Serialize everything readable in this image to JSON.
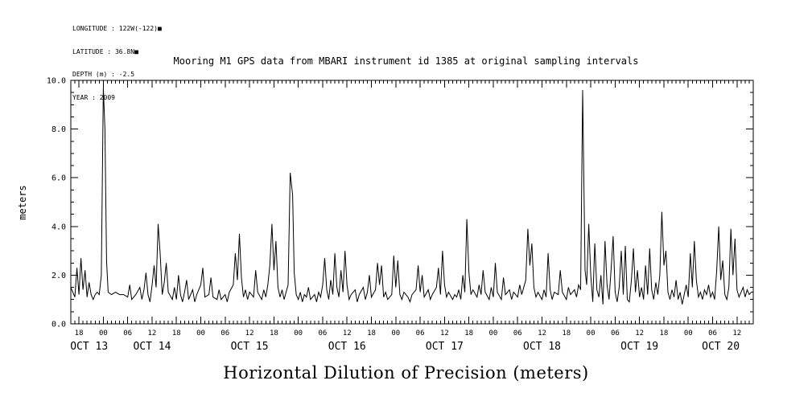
{
  "meta": {
    "longitude": "LONGITUDE : 122W(-122)■",
    "latitude": "LATITUDE : 36.8N■",
    "depth": "DEPTH (m) : -2.5",
    "year": "YEAR : 2009"
  },
  "title": "Mooring M1 GPS data from MBARI instrument id 1385 at original sampling intervals",
  "xlabel": "Horizontal Dilution of Precision (meters)",
  "ylabel": "meters",
  "chart_data": {
    "type": "line",
    "title": "Mooring M1 GPS data from MBARI instrument id 1385 at original sampling intervals",
    "xlabel": "Horizontal Dilution of Precision (meters)",
    "ylabel": "meters",
    "ylim": [
      0,
      10
    ],
    "x_range": [
      0,
      168
    ],
    "x_epoch": "hours since 1600 OCT 13 2009",
    "x_minor_step_hours": 1,
    "y_minor_step": 0.5,
    "grid": false,
    "legend": "none",
    "line_color": "#000000",
    "y_major_ticks": [
      {
        "v": 0,
        "label": "0.0"
      },
      {
        "v": 2,
        "label": "2.0"
      },
      {
        "v": 4,
        "label": "4.0"
      },
      {
        "v": 6,
        "label": "6.0"
      },
      {
        "v": 8,
        "label": "8.0"
      },
      {
        "v": 10,
        "label": "10.0"
      }
    ],
    "x_major_ticks": [
      {
        "t": 2,
        "label": "18"
      },
      {
        "t": 8,
        "label": "00"
      },
      {
        "t": 14,
        "label": "06"
      },
      {
        "t": 20,
        "label": "12"
      },
      {
        "t": 26,
        "label": "18"
      },
      {
        "t": 32,
        "label": "00"
      },
      {
        "t": 38,
        "label": "06"
      },
      {
        "t": 44,
        "label": "12"
      },
      {
        "t": 50,
        "label": "18"
      },
      {
        "t": 56,
        "label": "00"
      },
      {
        "t": 62,
        "label": "06"
      },
      {
        "t": 68,
        "label": "12"
      },
      {
        "t": 74,
        "label": "18"
      },
      {
        "t": 80,
        "label": "00"
      },
      {
        "t": 86,
        "label": "06"
      },
      {
        "t": 92,
        "label": "12"
      },
      {
        "t": 98,
        "label": "18"
      },
      {
        "t": 104,
        "label": "00"
      },
      {
        "t": 110,
        "label": "06"
      },
      {
        "t": 116,
        "label": "12"
      },
      {
        "t": 122,
        "label": "18"
      },
      {
        "t": 128,
        "label": "00"
      },
      {
        "t": 134,
        "label": "06"
      },
      {
        "t": 140,
        "label": "12"
      },
      {
        "t": 146,
        "label": "18"
      },
      {
        "t": 152,
        "label": "00"
      },
      {
        "t": 158,
        "label": "06"
      },
      {
        "t": 164,
        "label": "12"
      }
    ],
    "date_labels": [
      {
        "t": 4.5,
        "label": "OCT 13"
      },
      {
        "t": 20,
        "label": "OCT 14"
      },
      {
        "t": 44,
        "label": "OCT 15"
      },
      {
        "t": 68,
        "label": "OCT 16"
      },
      {
        "t": 92,
        "label": "OCT 17"
      },
      {
        "t": 116,
        "label": "OCT 18"
      },
      {
        "t": 140,
        "label": "OCT 19"
      },
      {
        "t": 160,
        "label": "OCT 20"
      }
    ],
    "points": [
      [
        0,
        1.5
      ],
      [
        1,
        1.1
      ],
      [
        1.5,
        2.3
      ],
      [
        2,
        1.2
      ],
      [
        2.5,
        2.7
      ],
      [
        3,
        1.4
      ],
      [
        3.5,
        2.2
      ],
      [
        4,
        1.1
      ],
      [
        4.5,
        1.7
      ],
      [
        5,
        1.2
      ],
      [
        5.5,
        1.0
      ],
      [
        6,
        1.2
      ],
      [
        6.5,
        1.3
      ],
      [
        7,
        1.2
      ],
      [
        7.5,
        2.0
      ],
      [
        8,
        9.7
      ],
      [
        8.4,
        8.0
      ],
      [
        8.8,
        2.6
      ],
      [
        9.2,
        1.3
      ],
      [
        10,
        1.2
      ],
      [
        11,
        1.3
      ],
      [
        12,
        1.2
      ],
      [
        13,
        1.2
      ],
      [
        14,
        1.1
      ],
      [
        14.5,
        1.6
      ],
      [
        15,
        1.0
      ],
      [
        16,
        1.2
      ],
      [
        17,
        1.5
      ],
      [
        17.5,
        1.0
      ],
      [
        18,
        1.4
      ],
      [
        18.5,
        2.1
      ],
      [
        19,
        1.2
      ],
      [
        19.5,
        0.9
      ],
      [
        20,
        1.6
      ],
      [
        20.5,
        2.4
      ],
      [
        21,
        1.5
      ],
      [
        21.5,
        4.1
      ],
      [
        22,
        2.9
      ],
      [
        22.5,
        1.2
      ],
      [
        23,
        1.7
      ],
      [
        23.5,
        2.5
      ],
      [
        24,
        1.3
      ],
      [
        25,
        1.0
      ],
      [
        25.5,
        1.5
      ],
      [
        26,
        1.0
      ],
      [
        26.5,
        2.0
      ],
      [
        27,
        1.2
      ],
      [
        27.5,
        0.9
      ],
      [
        28,
        1.3
      ],
      [
        28.5,
        1.8
      ],
      [
        29,
        1.0
      ],
      [
        30,
        1.4
      ],
      [
        30.5,
        0.9
      ],
      [
        31,
        1.2
      ],
      [
        32,
        1.6
      ],
      [
        32.5,
        2.3
      ],
      [
        33,
        1.1
      ],
      [
        34,
        1.2
      ],
      [
        34.5,
        1.9
      ],
      [
        35,
        1.1
      ],
      [
        36,
        1.0
      ],
      [
        36.5,
        1.4
      ],
      [
        37,
        1.0
      ],
      [
        38,
        1.2
      ],
      [
        38.5,
        0.9
      ],
      [
        39,
        1.3
      ],
      [
        40,
        1.6
      ],
      [
        40.5,
        2.9
      ],
      [
        41,
        1.8
      ],
      [
        41.5,
        3.7
      ],
      [
        42,
        1.9
      ],
      [
        42.5,
        1.1
      ],
      [
        43,
        1.4
      ],
      [
        43.5,
        1.0
      ],
      [
        44,
        1.3
      ],
      [
        45,
        1.1
      ],
      [
        45.5,
        2.2
      ],
      [
        46,
        1.3
      ],
      [
        47,
        1.0
      ],
      [
        47.5,
        1.4
      ],
      [
        48,
        1.1
      ],
      [
        48.5,
        1.6
      ],
      [
        49,
        2.4
      ],
      [
        49.5,
        4.1
      ],
      [
        50,
        2.2
      ],
      [
        50.5,
        3.4
      ],
      [
        51,
        1.5
      ],
      [
        51.5,
        1.1
      ],
      [
        52,
        1.4
      ],
      [
        52.5,
        1.0
      ],
      [
        53,
        1.3
      ],
      [
        53.5,
        1.6
      ],
      [
        54,
        6.2
      ],
      [
        54.6,
        5.3
      ],
      [
        55,
        2.1
      ],
      [
        55.5,
        1.2
      ],
      [
        56,
        1.0
      ],
      [
        56.5,
        1.3
      ],
      [
        57,
        0.9
      ],
      [
        57.5,
        1.2
      ],
      [
        58,
        1.1
      ],
      [
        58.5,
        1.5
      ],
      [
        59,
        1.0
      ],
      [
        60,
        1.2
      ],
      [
        60.5,
        0.9
      ],
      [
        61,
        1.3
      ],
      [
        61.5,
        1.1
      ],
      [
        62,
        1.6
      ],
      [
        62.5,
        2.7
      ],
      [
        63,
        1.4
      ],
      [
        63.5,
        1.0
      ],
      [
        64,
        1.8
      ],
      [
        64.5,
        1.2
      ],
      [
        65,
        2.9
      ],
      [
        65.5,
        1.5
      ],
      [
        66,
        1.1
      ],
      [
        66.5,
        2.2
      ],
      [
        67,
        1.3
      ],
      [
        67.5,
        3.0
      ],
      [
        68,
        1.6
      ],
      [
        68.5,
        1.0
      ],
      [
        69,
        1.2
      ],
      [
        70,
        1.4
      ],
      [
        70.5,
        0.9
      ],
      [
        71,
        1.2
      ],
      [
        72,
        1.5
      ],
      [
        72.5,
        1.0
      ],
      [
        73,
        1.3
      ],
      [
        73.5,
        2.0
      ],
      [
        74,
        1.1
      ],
      [
        75,
        1.4
      ],
      [
        75.5,
        2.5
      ],
      [
        76,
        1.6
      ],
      [
        76.5,
        2.4
      ],
      [
        77,
        1.1
      ],
      [
        77.5,
        1.3
      ],
      [
        78,
        1.0
      ],
      [
        79,
        1.2
      ],
      [
        79.5,
        2.8
      ],
      [
        80,
        1.5
      ],
      [
        80.5,
        2.6
      ],
      [
        81,
        1.2
      ],
      [
        81.5,
        1.0
      ],
      [
        82,
        1.3
      ],
      [
        83,
        1.1
      ],
      [
        83.5,
        0.9
      ],
      [
        84,
        1.2
      ],
      [
        85,
        1.4
      ],
      [
        85.5,
        2.4
      ],
      [
        86,
        1.3
      ],
      [
        86.5,
        2.0
      ],
      [
        87,
        1.1
      ],
      [
        88,
        1.4
      ],
      [
        88.5,
        1.0
      ],
      [
        89,
        1.2
      ],
      [
        90,
        1.5
      ],
      [
        90.5,
        2.3
      ],
      [
        91,
        1.2
      ],
      [
        91.5,
        3.0
      ],
      [
        92,
        1.6
      ],
      [
        92.5,
        1.1
      ],
      [
        93,
        1.3
      ],
      [
        94,
        1.0
      ],
      [
        94.5,
        1.2
      ],
      [
        95,
        1.1
      ],
      [
        95.5,
        1.4
      ],
      [
        96,
        1.0
      ],
      [
        96.5,
        2.0
      ],
      [
        97,
        1.3
      ],
      [
        97.5,
        4.3
      ],
      [
        98,
        2.1
      ],
      [
        98.5,
        1.2
      ],
      [
        99,
        1.4
      ],
      [
        100,
        1.1
      ],
      [
        100.5,
        1.6
      ],
      [
        101,
        1.2
      ],
      [
        101.5,
        2.2
      ],
      [
        102,
        1.3
      ],
      [
        103,
        1.0
      ],
      [
        103.5,
        1.5
      ],
      [
        104,
        1.1
      ],
      [
        104.5,
        2.5
      ],
      [
        105,
        1.3
      ],
      [
        106,
        1.0
      ],
      [
        106.5,
        1.9
      ],
      [
        107,
        1.2
      ],
      [
        108,
        1.4
      ],
      [
        108.5,
        1.0
      ],
      [
        109,
        1.3
      ],
      [
        110,
        1.1
      ],
      [
        110.5,
        1.6
      ],
      [
        111,
        1.2
      ],
      [
        112,
        1.8
      ],
      [
        112.5,
        3.9
      ],
      [
        113,
        2.4
      ],
      [
        113.5,
        3.3
      ],
      [
        114,
        1.5
      ],
      [
        114.5,
        1.1
      ],
      [
        115,
        1.3
      ],
      [
        116,
        1.0
      ],
      [
        116.5,
        1.4
      ],
      [
        117,
        1.1
      ],
      [
        117.5,
        2.9
      ],
      [
        118,
        1.4
      ],
      [
        118.5,
        1.0
      ],
      [
        119,
        1.3
      ],
      [
        120,
        1.2
      ],
      [
        120.5,
        2.2
      ],
      [
        121,
        1.3
      ],
      [
        122,
        1.0
      ],
      [
        122.5,
        1.5
      ],
      [
        123,
        1.2
      ],
      [
        124,
        1.4
      ],
      [
        124.5,
        1.1
      ],
      [
        125,
        1.6
      ],
      [
        125.5,
        1.4
      ],
      [
        126,
        9.6
      ],
      [
        126.6,
        2.2
      ],
      [
        127,
        1.6
      ],
      [
        127.5,
        4.1
      ],
      [
        128,
        2.0
      ],
      [
        128.5,
        0.9
      ],
      [
        129,
        3.3
      ],
      [
        129.5,
        1.4
      ],
      [
        130,
        1.1
      ],
      [
        130.5,
        2.0
      ],
      [
        131,
        0.8
      ],
      [
        131.5,
        3.4
      ],
      [
        132,
        1.6
      ],
      [
        132.5,
        1.0
      ],
      [
        133,
        2.2
      ],
      [
        133.5,
        3.6
      ],
      [
        134,
        1.3
      ],
      [
        134.5,
        0.9
      ],
      [
        135,
        1.5
      ],
      [
        135.5,
        3.0
      ],
      [
        136,
        1.2
      ],
      [
        136.5,
        3.2
      ],
      [
        137,
        1.0
      ],
      [
        137.5,
        0.9
      ],
      [
        138,
        1.8
      ],
      [
        138.5,
        3.1
      ],
      [
        139,
        1.3
      ],
      [
        139.5,
        2.2
      ],
      [
        140,
        1.1
      ],
      [
        140.5,
        1.5
      ],
      [
        141,
        1.0
      ],
      [
        141.5,
        2.4
      ],
      [
        142,
        1.2
      ],
      [
        142.5,
        3.1
      ],
      [
        143,
        1.4
      ],
      [
        143.5,
        1.0
      ],
      [
        144,
        1.7
      ],
      [
        144.5,
        1.2
      ],
      [
        145,
        2.0
      ],
      [
        145.5,
        4.6
      ],
      [
        146,
        2.4
      ],
      [
        146.5,
        3.0
      ],
      [
        147,
        1.3
      ],
      [
        147.5,
        1.0
      ],
      [
        148,
        1.4
      ],
      [
        148.5,
        1.1
      ],
      [
        149,
        1.8
      ],
      [
        149.5,
        1.0
      ],
      [
        150,
        1.3
      ],
      [
        150.5,
        0.8
      ],
      [
        151,
        1.2
      ],
      [
        151.5,
        1.6
      ],
      [
        152,
        1.1
      ],
      [
        152.5,
        2.9
      ],
      [
        153,
        1.5
      ],
      [
        153.5,
        3.4
      ],
      [
        154,
        1.8
      ],
      [
        154.5,
        1.1
      ],
      [
        155,
        1.3
      ],
      [
        155.5,
        1.0
      ],
      [
        156,
        1.4
      ],
      [
        156.5,
        1.2
      ],
      [
        157,
        1.6
      ],
      [
        157.5,
        1.1
      ],
      [
        158,
        1.3
      ],
      [
        158.5,
        1.0
      ],
      [
        159,
        2.2
      ],
      [
        159.5,
        4.0
      ],
      [
        160,
        1.8
      ],
      [
        160.5,
        2.6
      ],
      [
        161,
        1.2
      ],
      [
        161.5,
        1.0
      ],
      [
        162,
        1.5
      ],
      [
        162.5,
        3.9
      ],
      [
        163,
        2.0
      ],
      [
        163.5,
        3.5
      ],
      [
        164,
        1.4
      ],
      [
        164.5,
        1.1
      ],
      [
        165,
        1.3
      ],
      [
        165.5,
        1.5
      ],
      [
        166,
        1.1
      ],
      [
        166.5,
        1.4
      ],
      [
        167,
        1.2
      ],
      [
        167.5,
        1.3
      ],
      [
        168,
        1.3
      ]
    ]
  }
}
